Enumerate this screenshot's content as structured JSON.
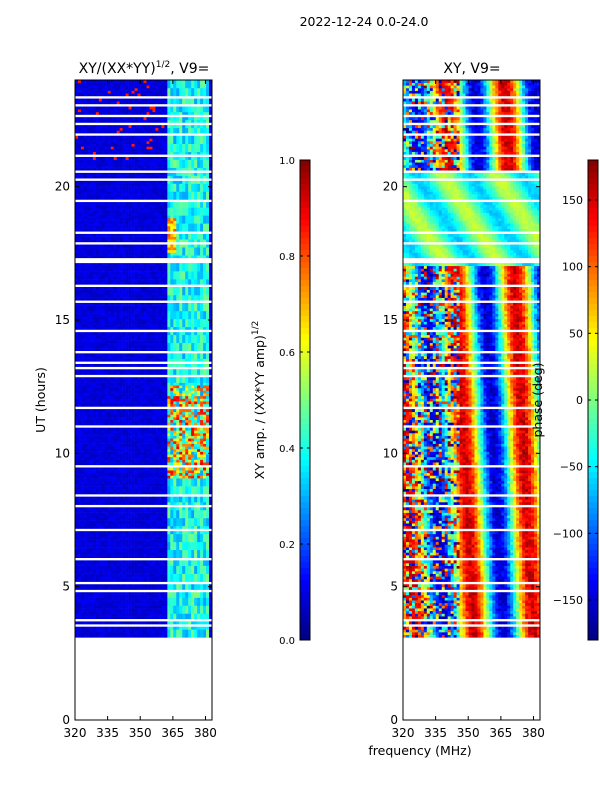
{
  "suptitle": "2022-12-24 0.0-24.0",
  "chart_data": [
    {
      "type": "heatmap",
      "title_main": "XY/(XX*YY)",
      "title_exp": "1/2",
      "title_tail": ", V9=",
      "xlabel": "",
      "ylabel": "UT (hours)",
      "xlim": [
        320,
        383
      ],
      "ylim": [
        0,
        24
      ],
      "xticks": [
        320,
        335,
        350,
        365,
        380
      ],
      "yticks": [
        0,
        5,
        10,
        15,
        20
      ],
      "data_start_hour": 3.1,
      "data_end_hour": 24.0,
      "colorbar": {
        "label_main": "XY amp. / (XX*YY amp)",
        "label_exp": "1/2",
        "range": [
          0.0,
          1.0
        ],
        "ticks": [
          "0.0",
          "0.2",
          "0.4",
          "0.6",
          "0.8",
          "1.0"
        ]
      }
    },
    {
      "type": "heatmap",
      "title": "XY, V9=",
      "xlabel": "frequency (MHz)",
      "ylabel": "",
      "xlim": [
        320,
        383
      ],
      "ylim": [
        0,
        24
      ],
      "xticks": [
        320,
        335,
        350,
        365,
        380
      ],
      "yticks": [
        0,
        5,
        10,
        15,
        20
      ],
      "data_start_hour": 3.1,
      "data_end_hour": 24.0,
      "colorbar": {
        "label": "phase (deg)",
        "range": [
          -180,
          180
        ],
        "ticks": [
          "150",
          "100",
          "50",
          "0",
          "−50",
          "−100",
          "−150"
        ]
      }
    }
  ]
}
